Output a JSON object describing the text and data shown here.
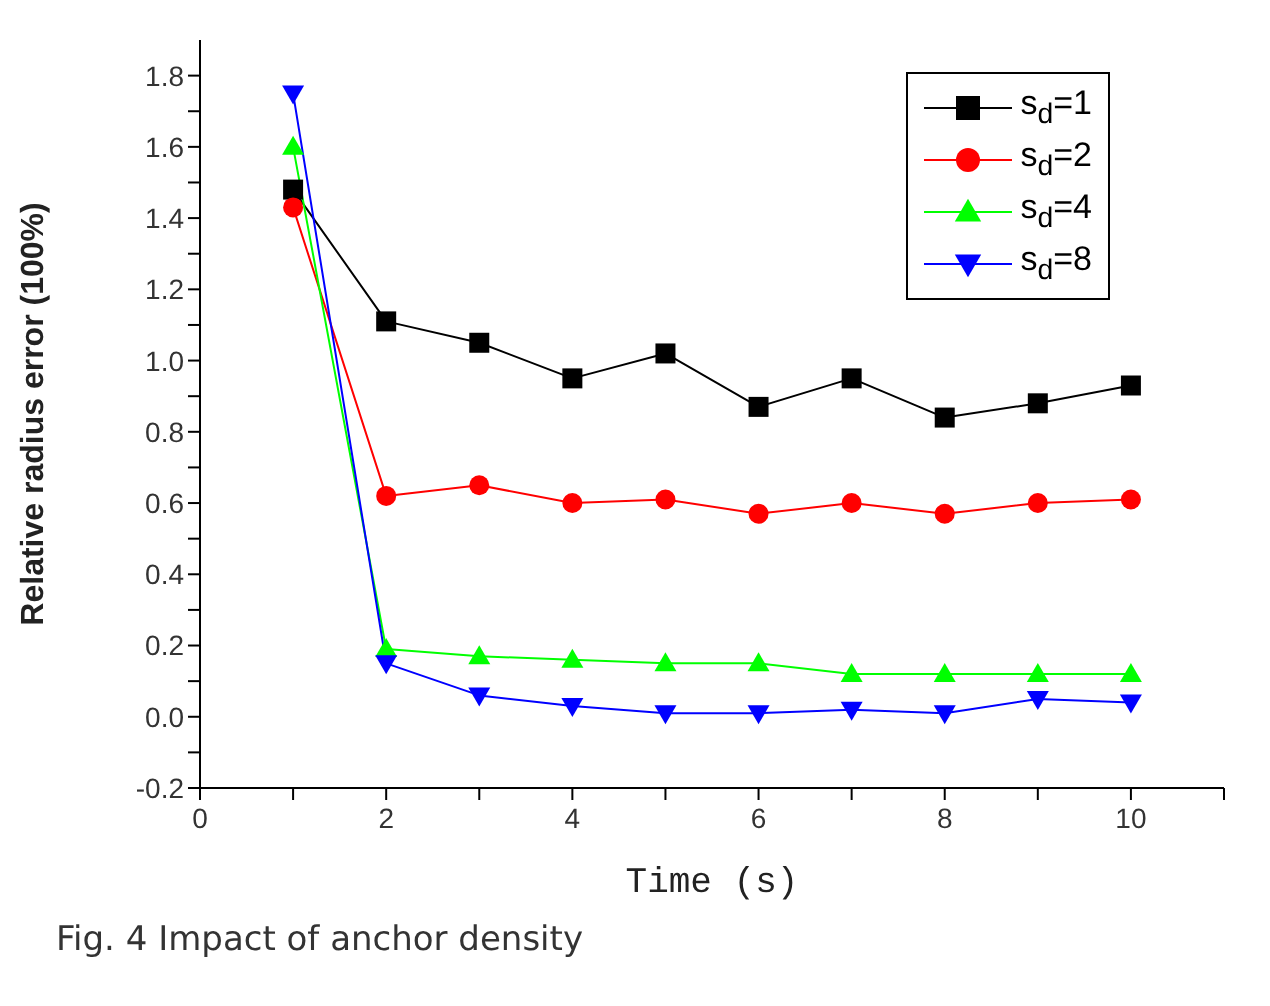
{
  "chart_data": {
    "type": "line",
    "xlabel": "Time (s)",
    "ylabel": "Relative radius error (100%)",
    "annotations": [
      "Fig. 4 Impact of anchor density"
    ],
    "x": [
      1,
      2,
      3,
      4,
      5,
      6,
      7,
      8,
      9,
      10
    ],
    "series": [
      {
        "name": "s$_{d}$=1",
        "color": "#000000",
        "marker": "square",
        "values": [
          1.48,
          1.11,
          1.05,
          0.95,
          1.02,
          0.87,
          0.95,
          0.84,
          0.88,
          0.93
        ]
      },
      {
        "name": "s$_{d}$=2",
        "color": "#ff0000",
        "marker": "circle",
        "values": [
          1.43,
          0.62,
          0.65,
          0.6,
          0.61,
          0.57,
          0.6,
          0.57,
          0.6,
          0.61
        ]
      },
      {
        "name": "s$_{d}$=4",
        "color": "#00ff00",
        "marker": "triangle",
        "values": [
          1.6,
          0.19,
          0.17,
          0.16,
          0.15,
          0.15,
          0.12,
          0.12,
          0.12,
          0.12
        ]
      },
      {
        "name": "s$_{d}$=8",
        "color": "#0000ff",
        "marker": "triangle-down",
        "values": [
          1.75,
          0.15,
          0.06,
          0.03,
          0.01,
          0.01,
          0.02,
          0.01,
          0.05,
          0.04
        ]
      }
    ],
    "xlim": [
      0,
      11
    ],
    "xticks": [
      0,
      {
        "value": 1,
        "label": null
      },
      2,
      {
        "value": 3,
        "label": null
      },
      4,
      {
        "value": 5,
        "label": null
      },
      6,
      {
        "value": 7,
        "label": null
      },
      8,
      {
        "value": 9,
        "label": null
      },
      10,
      {
        "value": 11,
        "label": null
      }
    ],
    "ylim": [
      -0.2,
      1.9
    ],
    "yticks": [
      {
        "value": -0.2,
        "label": "-0.2"
      },
      {
        "value": -0.1,
        "label": null
      },
      {
        "value": 0,
        "label": "0.0"
      },
      {
        "value": 0.1,
        "label": null
      },
      {
        "value": 0.2,
        "label": "0.2"
      },
      {
        "value": 0.3,
        "label": null
      },
      {
        "value": 0.4,
        "label": "0.4"
      },
      {
        "value": 0.5,
        "label": null
      },
      {
        "value": 0.6,
        "label": "0.6"
      },
      {
        "value": 0.7,
        "label": null
      },
      {
        "value": 0.8,
        "label": "0.8"
      },
      {
        "value": 0.9,
        "label": null
      },
      {
        "value": 1,
        "label": "1.0"
      },
      {
        "value": 1.1,
        "label": null
      },
      {
        "value": 1.2,
        "label": "1.2"
      },
      {
        "value": 1.3,
        "label": null
      },
      {
        "value": 1.4,
        "label": "1.4"
      },
      {
        "value": 1.5,
        "label": null
      },
      {
        "value": 1.6,
        "label": "1.6"
      },
      {
        "value": 1.7,
        "label": null
      },
      {
        "value": 1.8,
        "label": "1.8"
      }
    ],
    "grid": false,
    "legend": "top right",
    "line_style": "solid"
  }
}
